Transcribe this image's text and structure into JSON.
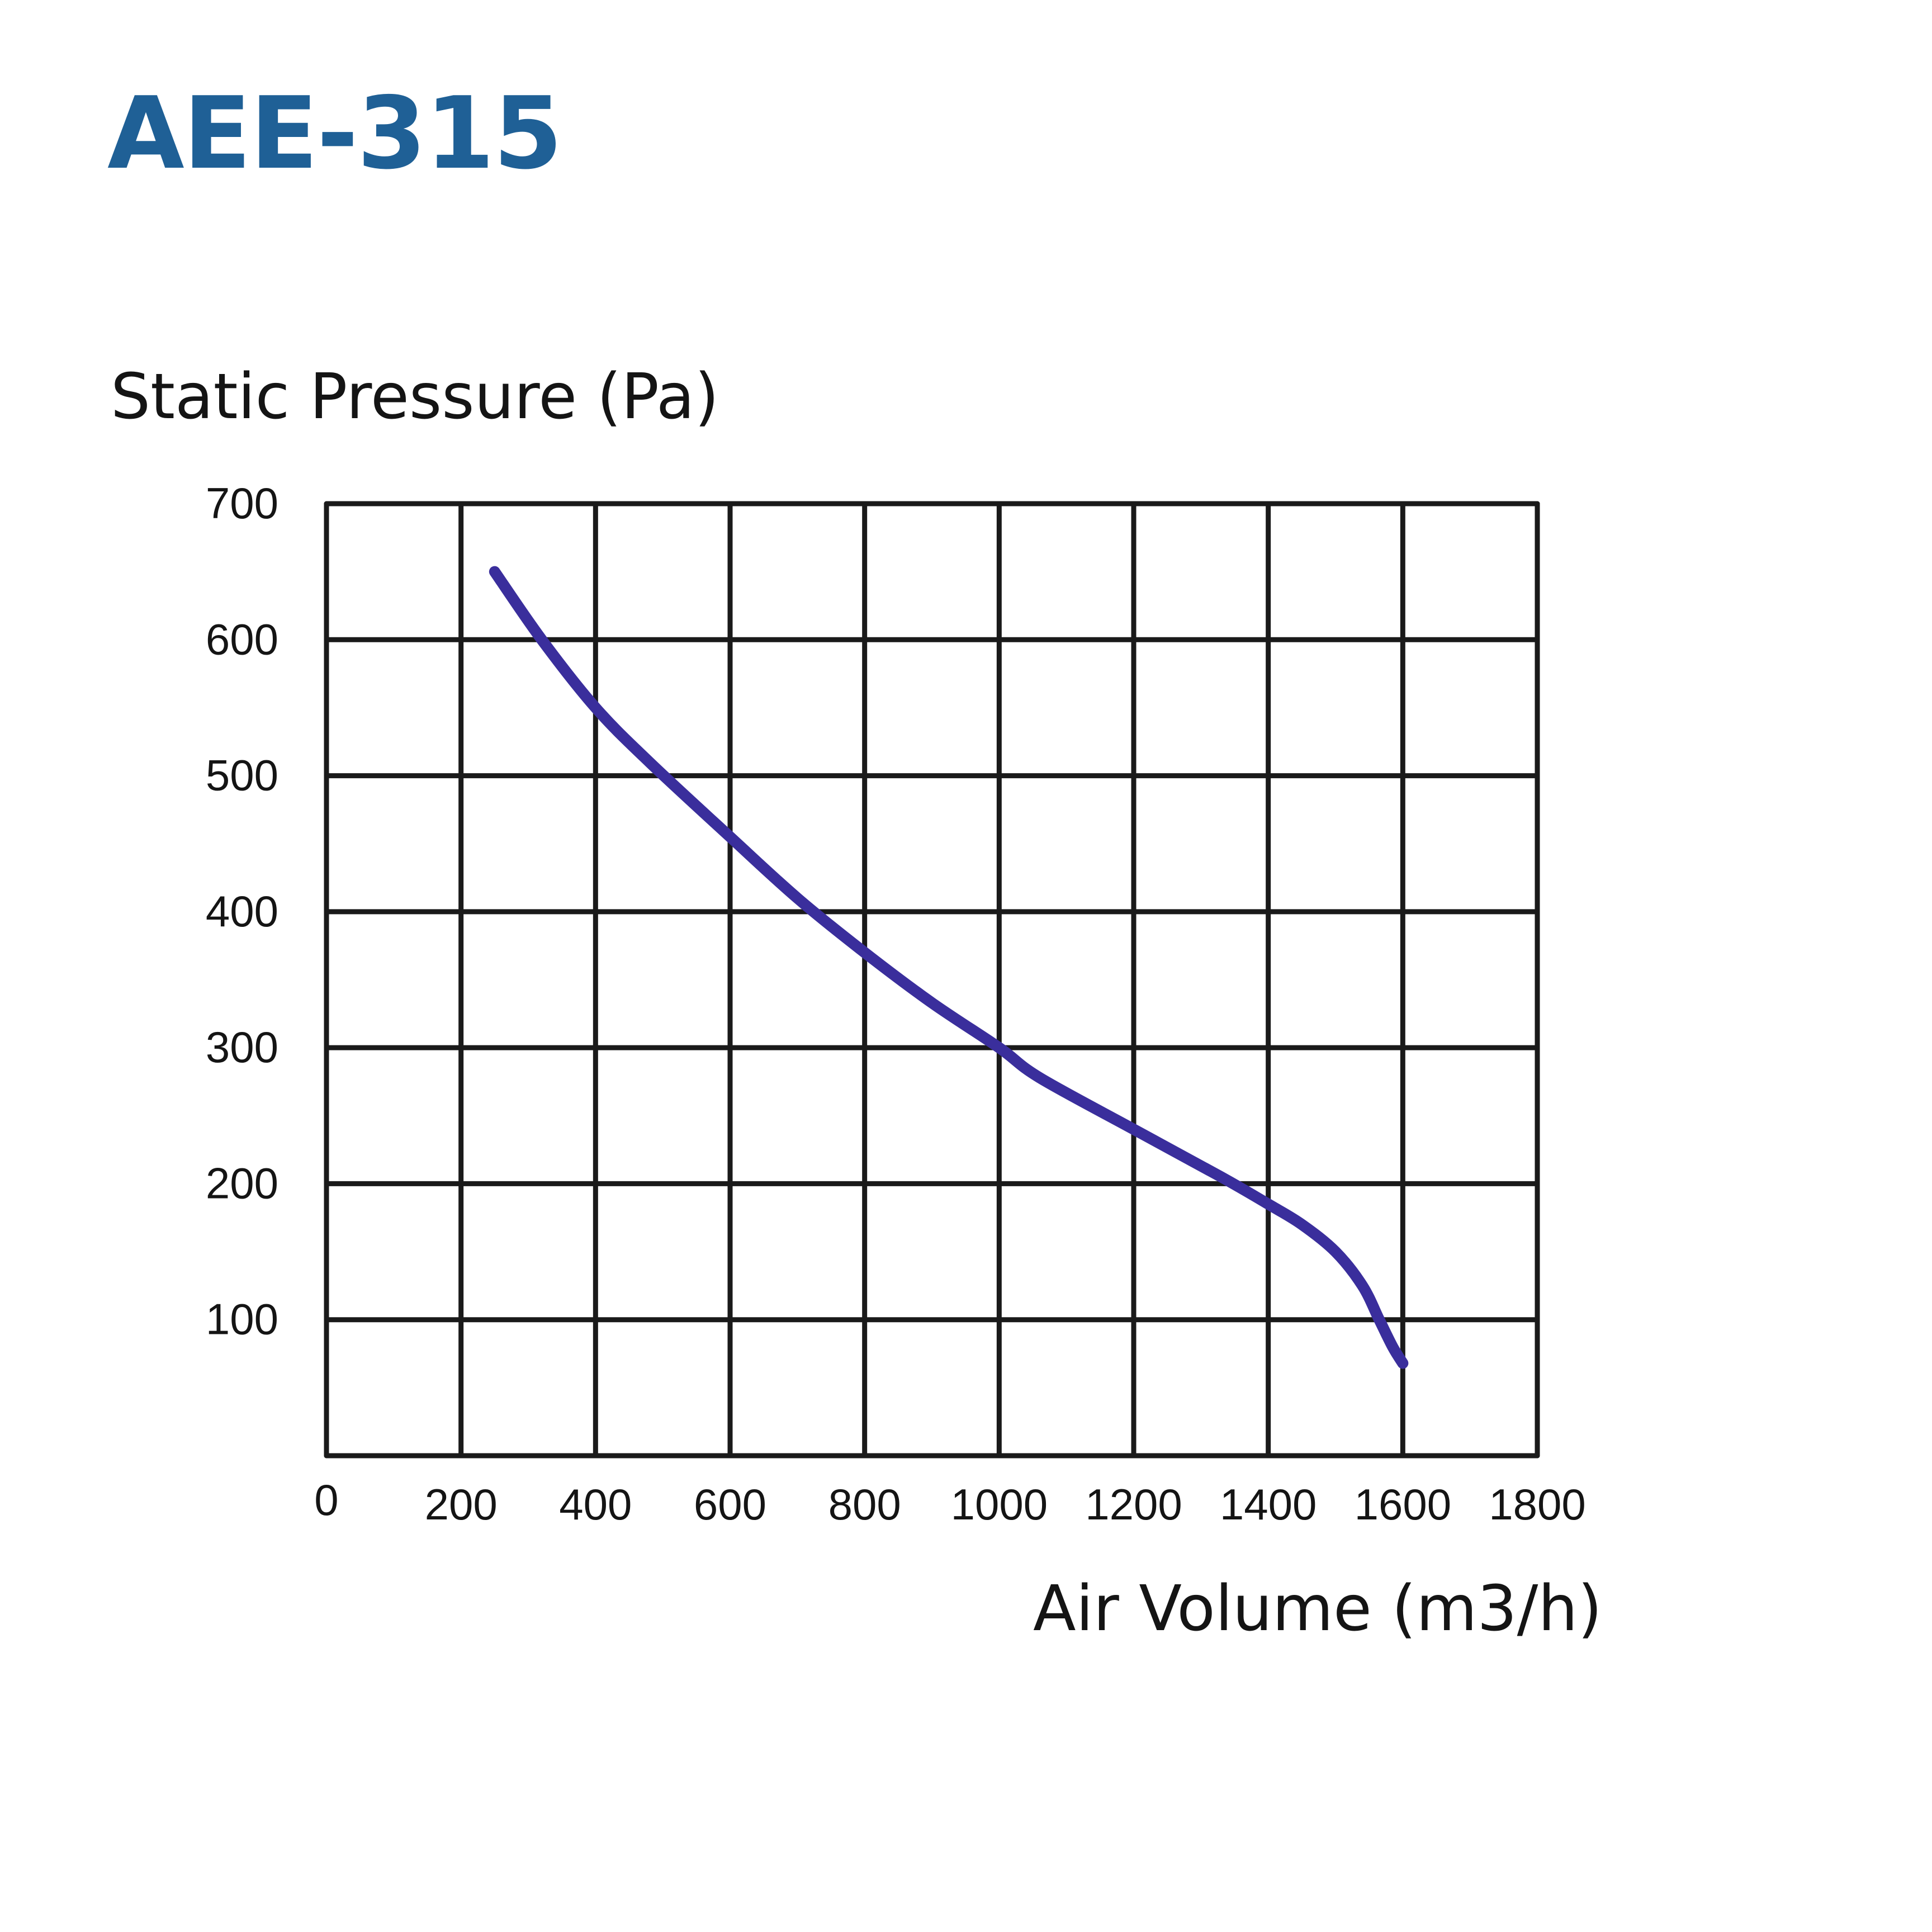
{
  "title": "AEE-315",
  "colors": {
    "title": "#1f6096",
    "curve": "#3a2e9c",
    "grid": "#1a1a1a"
  },
  "chart_data": {
    "type": "line",
    "title": "AEE-315",
    "xlabel": "Air Volume (m3/h)",
    "ylabel": "Static Pressure (Pa)",
    "xlim": [
      0,
      1800
    ],
    "ylim": [
      0,
      700
    ],
    "xticks": [
      0,
      200,
      400,
      600,
      800,
      1000,
      1200,
      1400,
      1600,
      1800
    ],
    "yticks": [
      100,
      200,
      300,
      400,
      500,
      600,
      700
    ],
    "grid": true,
    "series": [
      {
        "x": [
          250,
          320,
          400,
          480,
          600,
          700,
          800,
          900,
          1000,
          1060,
          1200,
          1330,
          1400,
          1450,
          1500,
          1540,
          1565,
          1585,
          1600
        ],
        "y": [
          650,
          600,
          550,
          510,
          455,
          410,
          370,
          333,
          300,
          278,
          240,
          205,
          185,
          170,
          150,
          125,
          100,
          80,
          68
        ]
      }
    ]
  }
}
